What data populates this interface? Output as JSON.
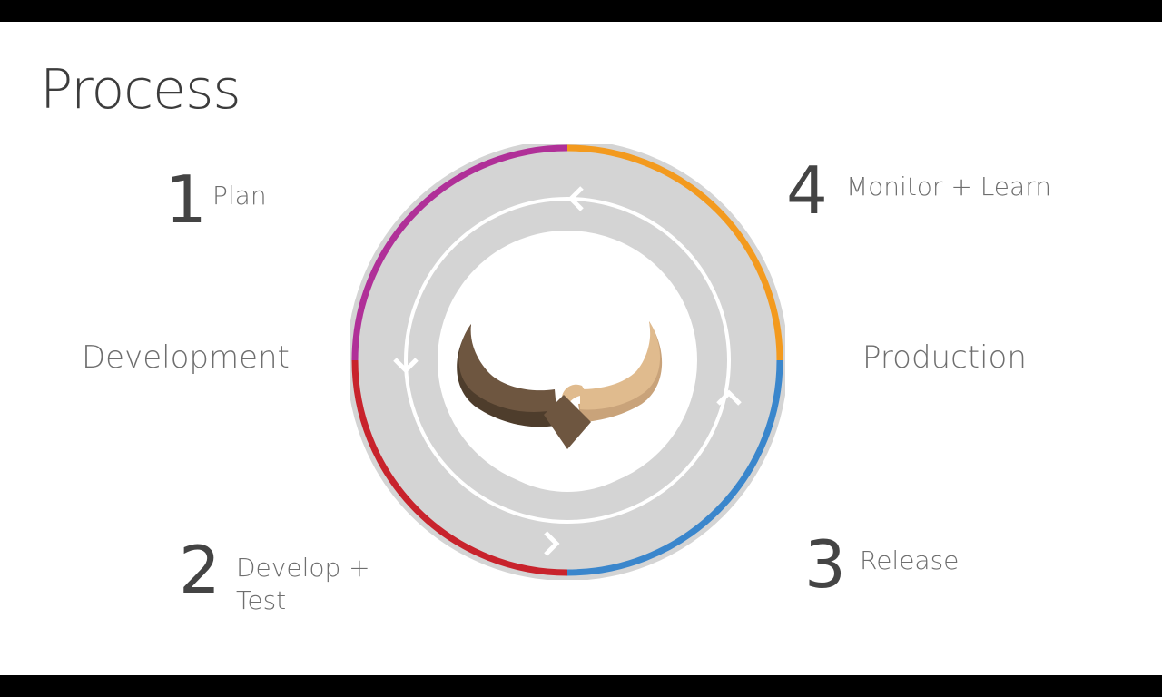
{
  "title": "Process",
  "steps": [
    {
      "number": "1",
      "label": "Plan"
    },
    {
      "number": "2",
      "label_line1": "Develop +",
      "label_line2": "Test"
    },
    {
      "number": "3",
      "label": "Release"
    },
    {
      "number": "4",
      "label": "Monitor + Learn"
    }
  ],
  "sides": {
    "left": "Development",
    "right": "Production"
  },
  "colors": {
    "plan": "#b03098",
    "develop": "#c8232c",
    "release": "#3a86cc",
    "monitor": "#f39a1e",
    "ring": "#d4d4d4",
    "handshake_dark": "#6e5640",
    "handshake_light": "#e0bb8e"
  },
  "icons": [
    "handshake-icon",
    "arrow-left-icon",
    "arrow-down-icon",
    "arrow-right-icon",
    "arrow-up-icon"
  ]
}
